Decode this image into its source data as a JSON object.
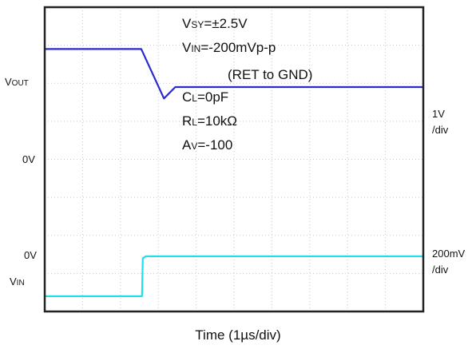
{
  "labels": {
    "vout": {
      "main": "V",
      "sub": "OUT"
    },
    "zero_top": "0V",
    "zero_bottom": "0V",
    "vin": {
      "main": "V",
      "sub": "IN"
    },
    "scale_top": {
      "line1": "1V",
      "line2": "/div"
    },
    "scale_bottom": {
      "line1": "200mV",
      "line2": "/div"
    }
  },
  "conditions": [
    {
      "main": "V",
      "sub": "SY",
      "rest": "=±2.5V"
    },
    {
      "main": "V",
      "sub": "IN",
      "rest": "=-200mVp-p"
    },
    {
      "main": "",
      "sub": "",
      "rest": "(RET to GND)"
    },
    {
      "main": "C",
      "sub": "L",
      "rest": "=0pF"
    },
    {
      "main": "R",
      "sub": "L",
      "rest": "=10kΩ"
    },
    {
      "main": "A",
      "sub": "V",
      "rest": "=-100"
    }
  ],
  "chart_data": {
    "type": "line",
    "xlabel": "Time (1µs/div)",
    "x_divisions": 10,
    "y_divisions": 8,
    "grid": true,
    "series": [
      {
        "color": "#2a2ad0",
        "unit": "div",
        "x": [
          0,
          2.55,
          3.15,
          3.45,
          10
        ],
        "y": [
          6.9,
          6.9,
          5.6,
          5.9,
          5.9
        ]
      },
      {
        "color": "#1ee0ea",
        "unit": "div",
        "x": [
          0,
          2.57,
          2.59,
          2.67,
          10
        ],
        "y": [
          0.4,
          0.4,
          1.4,
          1.45,
          1.45
        ]
      }
    ]
  }
}
